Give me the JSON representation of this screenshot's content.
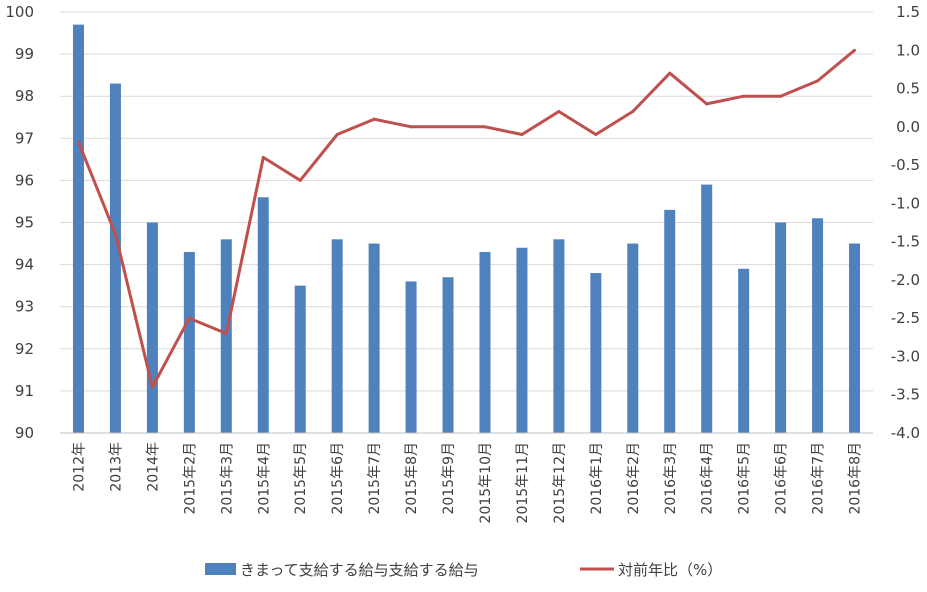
{
  "chart_data": {
    "type": "bar",
    "categories": [
      "2012年",
      "2013年",
      "2014年",
      "2015年2月",
      "2015年3月",
      "2015年4月",
      "2015年5月",
      "2015年6月",
      "2015年7月",
      "2015年8月",
      "2015年9月",
      "2015年10月",
      "2015年11月",
      "2015年12月",
      "2016年1月",
      "2016年2月",
      "2016年3月",
      "2016年4月",
      "2016年5月",
      "2016年6月",
      "2016年7月",
      "2016年8月"
    ],
    "series": [
      {
        "name": "きまって支給する給与支給する給与",
        "type": "bar",
        "axis": "left",
        "color": "#4F81BD",
        "values": [
          99.7,
          98.3,
          95.0,
          94.3,
          94.6,
          95.6,
          93.5,
          94.6,
          94.5,
          93.6,
          93.7,
          94.3,
          94.4,
          94.6,
          93.8,
          94.5,
          95.3,
          95.9,
          93.9,
          95.0,
          95.1,
          94.5
        ]
      },
      {
        "name": "対前年比（%）",
        "type": "line",
        "axis": "right",
        "color": "#C0504D",
        "values": [
          -0.2,
          -1.4,
          -3.4,
          -2.5,
          -2.7,
          -0.4,
          -0.7,
          -0.1,
          0.1,
          0.0,
          0.0,
          0.0,
          -0.1,
          0.2,
          -0.1,
          0.2,
          0.7,
          0.3,
          0.4,
          0.4,
          0.6,
          1.0
        ]
      }
    ],
    "y_left": {
      "min": 90,
      "max": 100,
      "ticks": [
        "90",
        "91",
        "92",
        "93",
        "94",
        "95",
        "96",
        "97",
        "98",
        "99",
        "100"
      ]
    },
    "y_right": {
      "min": -4.0,
      "max": 1.5,
      "ticks": [
        "-4.0",
        "-3.5",
        "-3.0",
        "-2.5",
        "-2.0",
        "-1.5",
        "-1.0",
        "-0.5",
        "0.0",
        "0.5",
        "1.0",
        "1.5"
      ]
    },
    "grid": true,
    "legend_position": "bottom"
  }
}
